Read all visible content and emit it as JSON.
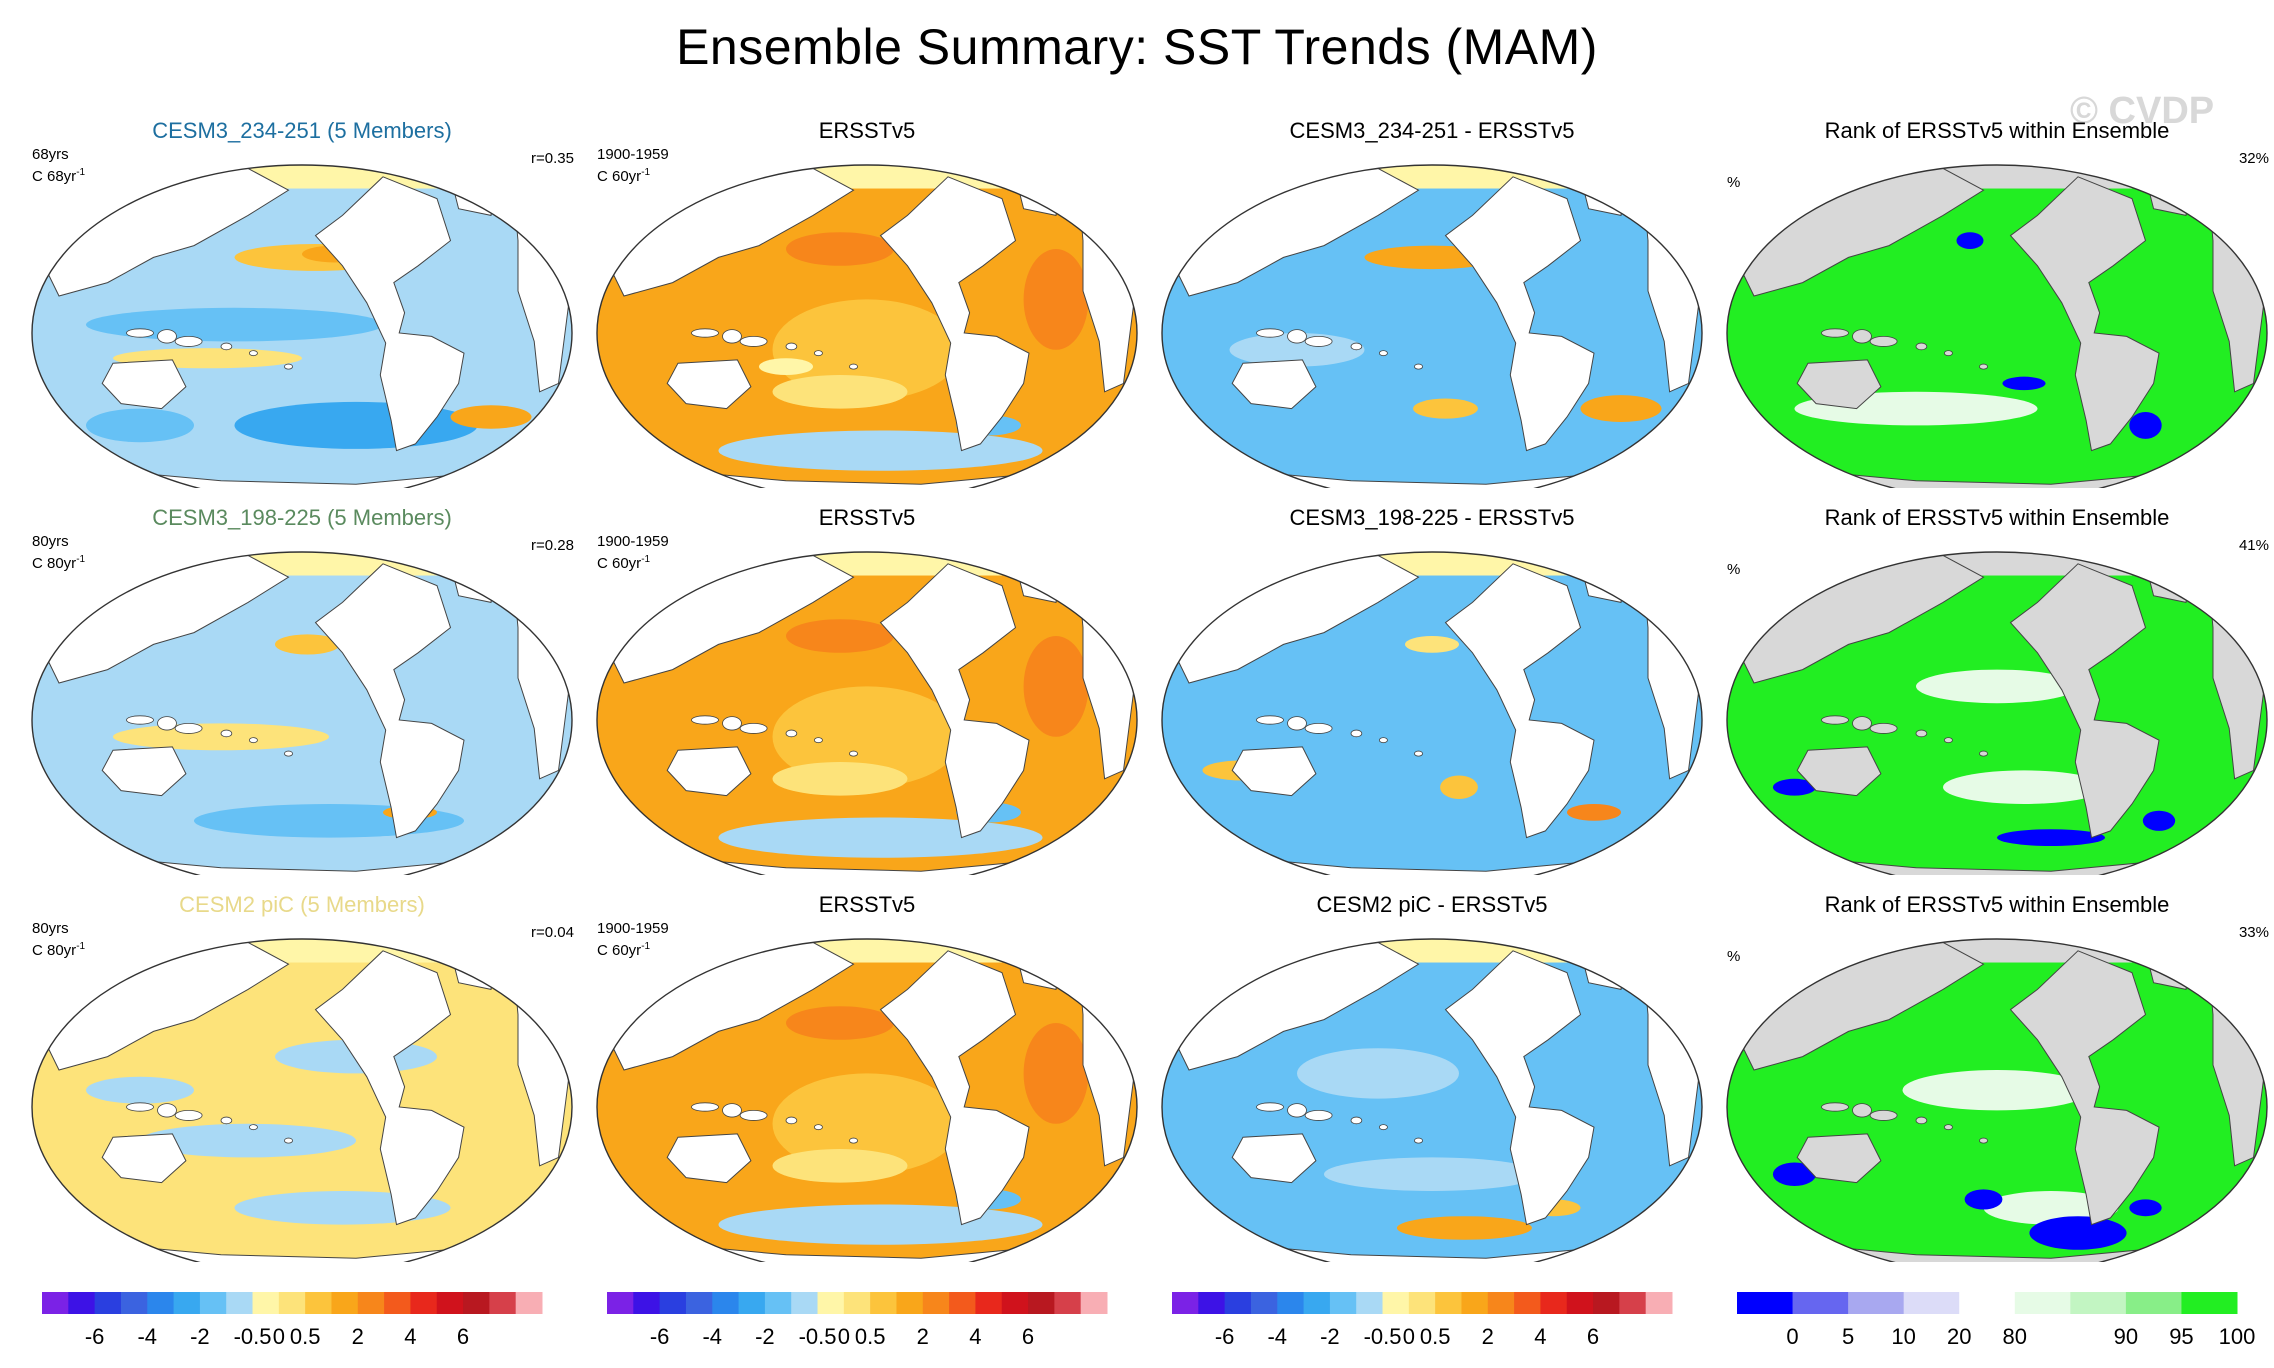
{
  "title": "Ensemble Summary: SST Trends (MAM)",
  "watermark": "© CVDP",
  "rows": [
    {
      "model": {
        "title": "CESM3_234-251 (5 Members)",
        "title_color": "#1d6fa0",
        "years": "68yrs",
        "units": "C 68yr",
        "units_sup": "-1",
        "r": "r=0.35"
      },
      "obs": {
        "title": "ERSSTv5",
        "years": "1900-1959",
        "units": "C 60yr",
        "units_sup": "-1"
      },
      "diff": {
        "title": "CESM3_234-251 - ERSSTv5"
      },
      "rank": {
        "title": "Rank of ERSSTv5 within Ensemble",
        "unit": "%",
        "pct": "32%"
      }
    },
    {
      "model": {
        "title": "CESM3_198-225 (5 Members)",
        "title_color": "#5a8a5e",
        "years": "80yrs",
        "units": "C 80yr",
        "units_sup": "-1",
        "r": "r=0.28"
      },
      "obs": {
        "title": "ERSSTv5",
        "years": "1900-1959",
        "units": "C 60yr",
        "units_sup": "-1"
      },
      "diff": {
        "title": "CESM3_198-225 - ERSSTv5"
      },
      "rank": {
        "title": "Rank of ERSSTv5 within Ensemble",
        "unit": "%",
        "pct": "41%"
      }
    },
    {
      "model": {
        "title": "CESM2 piC (5 Members)",
        "title_color": "#e8d98a",
        "years": "80yrs",
        "units": "C 80yr",
        "units_sup": "-1",
        "r": "r=0.04"
      },
      "obs": {
        "title": "ERSSTv5",
        "years": "1900-1959",
        "units": "C 60yr",
        "units_sup": "-1"
      },
      "diff": {
        "title": "CESM2 piC - ERSSTv5"
      },
      "rank": {
        "title": "Rank of ERSSTv5 within Ensemble",
        "unit": "%",
        "pct": "33%"
      }
    }
  ],
  "chart_data": {
    "type": "heatmap",
    "projection": "global map",
    "trend_colorbar": {
      "colors": [
        "#7b22e6",
        "#3d12e6",
        "#2a3fe0",
        "#3b63e0",
        "#2b86ec",
        "#38a8f0",
        "#66c1f5",
        "#a9d9f5",
        "#fff6a8",
        "#fde37a",
        "#fcc43c",
        "#f9a61a",
        "#f7861b",
        "#f35a1c",
        "#e8281c",
        "#d0121c",
        "#b81820",
        "#d6404a",
        "#f8aeb4"
      ],
      "tick_labels": [
        "-6",
        "-4",
        "-2",
        "-0.5",
        "0",
        "0.5",
        "2",
        "4",
        "6"
      ],
      "tick_boundary_index": [
        2,
        4,
        6,
        8,
        9,
        10,
        12,
        14,
        16
      ]
    },
    "rank_colorbar": {
      "colors": [
        "#0000ff",
        "#6666f0",
        "#a8a8f0",
        "#dcdcf8",
        "#ffffff",
        "#e6fbe6",
        "#c2f5c2",
        "#88ee88",
        "#22ee22"
      ],
      "tick_labels": [
        "0",
        "5",
        "10",
        "20",
        "80",
        "90",
        "95",
        "100"
      ],
      "tick_boundary_index": [
        1,
        2,
        3,
        4,
        5,
        7,
        8,
        9
      ]
    }
  }
}
